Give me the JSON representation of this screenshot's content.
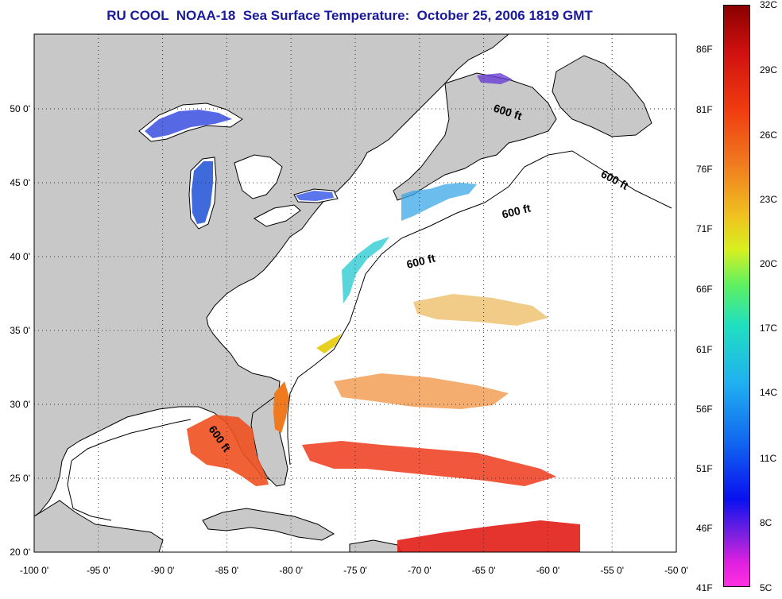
{
  "title": "RU COOL  NOAA-18  Sea Surface Temperature:  October 25, 2006 1819 GMT",
  "map": {
    "contour_label": "600 ft",
    "lat_ticks": [
      "20 0'",
      "25 0'",
      "30 0'",
      "35 0'",
      "40 0'",
      "45 0'",
      "50 0'"
    ],
    "lon_ticks": [
      "-100 0'",
      "-95 0'",
      "-90 0'",
      "-85 0'",
      "-80 0'",
      "-75 0'",
      "-70 0'",
      "-65 0'",
      "-60 0'",
      "-55 0'",
      "-50 0'"
    ],
    "colors": {
      "land": "#c8c8c8",
      "ocean": "#ffffff",
      "grid": "#555555"
    }
  },
  "colorbar": {
    "fahrenheit": [
      "86F",
      "81F",
      "76F",
      "71F",
      "66F",
      "61F",
      "56F",
      "51F",
      "46F",
      "41F"
    ],
    "celsius": [
      "32C",
      "29C",
      "26C",
      "23C",
      "20C",
      "17C",
      "14C",
      "11C",
      "8C",
      "5C"
    ]
  }
}
